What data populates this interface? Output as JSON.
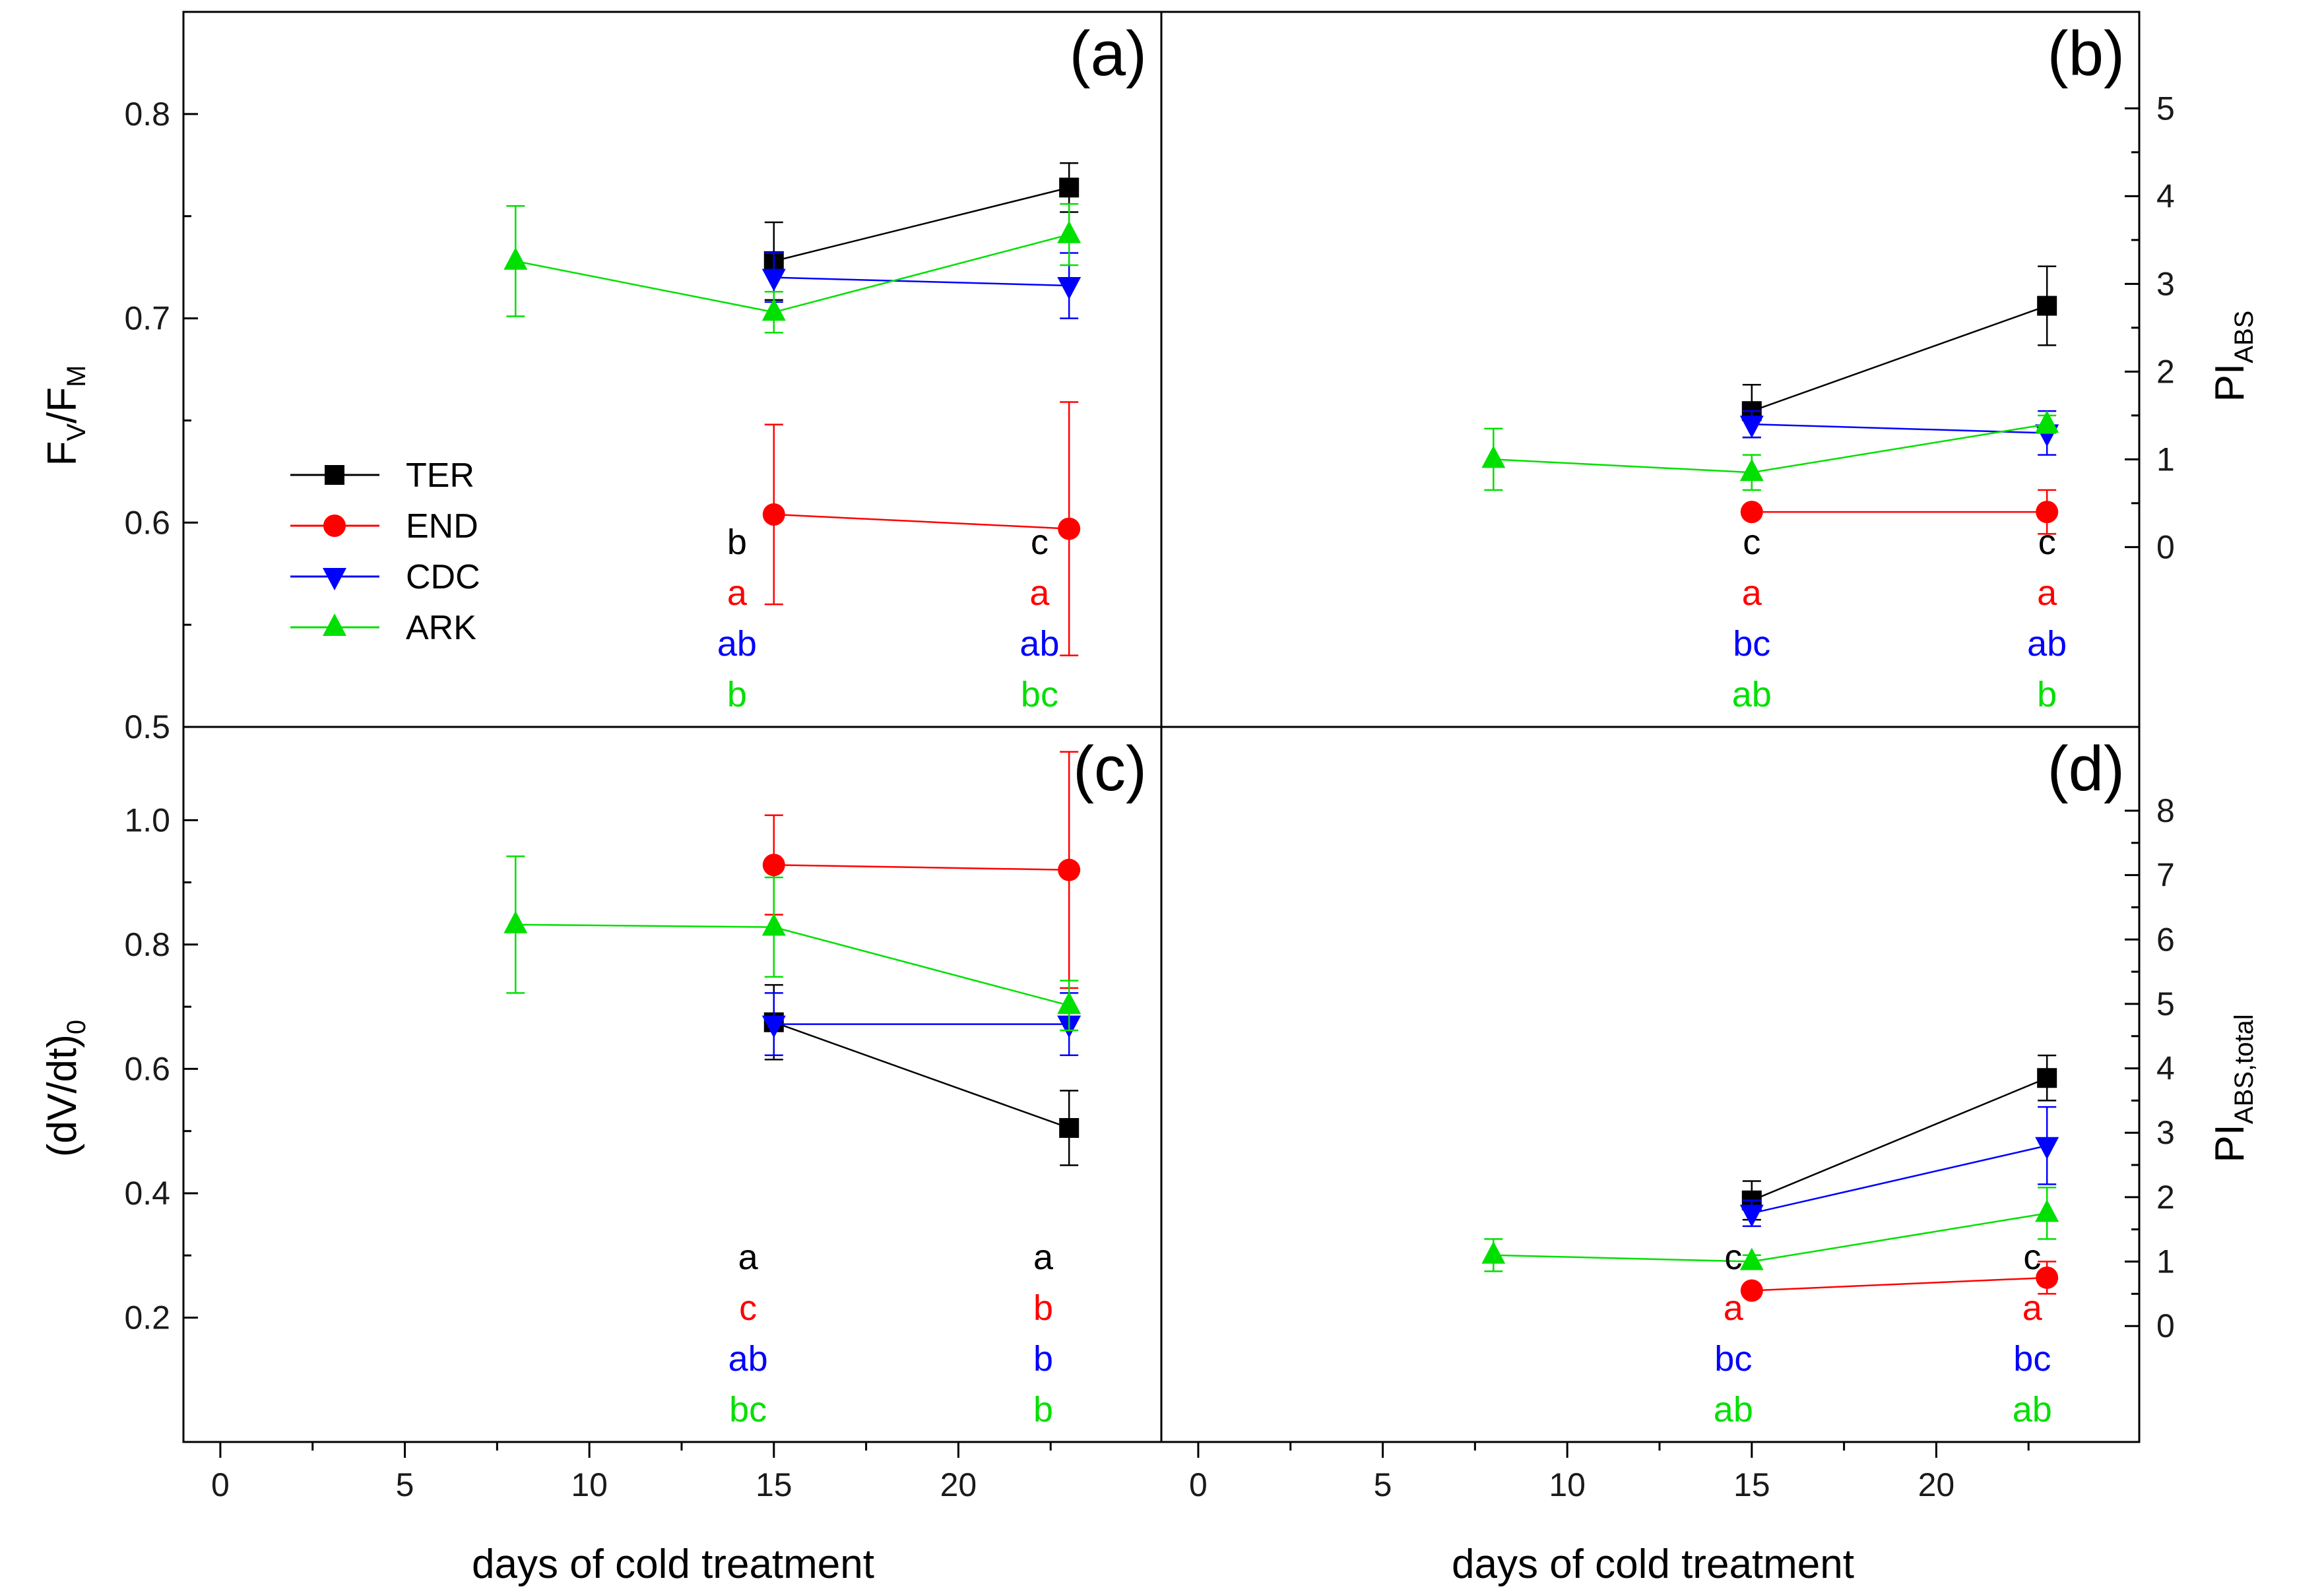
{
  "colors": {
    "TER": "#000000",
    "END": "#ff0000",
    "CDC": "#0000ff",
    "ARK": "#00e000"
  },
  "legend": {
    "entries": [
      {
        "key": "TER",
        "label": "TER"
      },
      {
        "key": "END",
        "label": "END"
      },
      {
        "key": "CDC",
        "label": "CDC"
      },
      {
        "key": "ARK",
        "label": "ARK"
      }
    ]
  },
  "x_axis": {
    "label": "days of cold treatment",
    "ticks": [
      0,
      5,
      10,
      15,
      20
    ]
  },
  "chart_data": [
    {
      "id": "a",
      "panel_label": "(a)",
      "type": "line",
      "ylabel": {
        "main": "F",
        "sub1": "V",
        "mid": "/F",
        "sub2": "M"
      },
      "ylim": [
        0.5,
        0.85
      ],
      "yticks": [
        0.5,
        0.6,
        0.7,
        0.8
      ],
      "ytick_labels": [
        "0.5",
        "0.6",
        "0.7",
        "0.8"
      ],
      "series": [
        {
          "name": "TER",
          "x": [
            15,
            23
          ],
          "y": [
            0.728,
            0.764
          ],
          "err": [
            0.019,
            0.012
          ]
        },
        {
          "name": "END",
          "x": [
            15,
            23
          ],
          "y": [
            0.604,
            0.597
          ],
          "err": [
            0.044,
            0.062
          ]
        },
        {
          "name": "CDC",
          "x": [
            15,
            23
          ],
          "y": [
            0.72,
            0.716
          ],
          "err": [
            0.012,
            0.016
          ]
        },
        {
          "name": "ARK",
          "x": [
            8,
            15,
            23
          ],
          "y": [
            0.728,
            0.703,
            0.741
          ],
          "err": [
            0.027,
            0.01,
            0.015
          ]
        }
      ],
      "letters": [
        {
          "x": 14,
          "labels": [
            "b",
            "a",
            "ab",
            "b"
          ]
        },
        {
          "x": 22.2,
          "labels": [
            "c",
            "a",
            "ab",
            "bc"
          ]
        }
      ]
    },
    {
      "id": "b",
      "panel_label": "(b)",
      "type": "line",
      "ylabel": {
        "main": "PI",
        "sub1": "ABS"
      },
      "ylim": [
        -2.05,
        6.1
      ],
      "yticks": [
        0,
        1,
        2,
        3,
        4,
        5
      ],
      "ytick_labels": [
        "0",
        "1",
        "2",
        "3",
        "4",
        "5"
      ],
      "series": [
        {
          "name": "TER",
          "x": [
            15,
            23
          ],
          "y": [
            1.55,
            2.75
          ],
          "err": [
            0.3,
            0.45
          ]
        },
        {
          "name": "END",
          "x": [
            15,
            23
          ],
          "y": [
            0.4,
            0.4
          ],
          "err": [
            0.05,
            0.25
          ]
        },
        {
          "name": "CDC",
          "x": [
            15,
            23
          ],
          "y": [
            1.4,
            1.3
          ],
          "err": [
            0.15,
            0.25
          ]
        },
        {
          "name": "ARK",
          "x": [
            8,
            15,
            23
          ],
          "y": [
            1.0,
            0.85,
            1.4
          ],
          "err": [
            0.35,
            0.2,
            0.1
          ]
        }
      ],
      "letters": [
        {
          "x": 15,
          "labels": [
            "c",
            "a",
            "bc",
            "ab"
          ]
        },
        {
          "x": 23,
          "labels": [
            "c",
            "a",
            "ab",
            "b"
          ]
        }
      ]
    },
    {
      "id": "c",
      "panel_label": "(c)",
      "type": "line",
      "ylabel": {
        "main": "(dV/dt)",
        "sub1": "0"
      },
      "ylim": [
        0.0,
        1.15
      ],
      "yticks": [
        0.2,
        0.4,
        0.6,
        0.8,
        1.0
      ],
      "ytick_labels": [
        "0.2",
        "0.4",
        "0.6",
        "0.8",
        "1.0"
      ],
      "series": [
        {
          "name": "TER",
          "x": [
            15,
            23
          ],
          "y": [
            0.675,
            0.505
          ],
          "err": [
            0.06,
            0.06
          ]
        },
        {
          "name": "END",
          "x": [
            15,
            23
          ],
          "y": [
            0.928,
            0.92
          ],
          "err": [
            0.08,
            0.19
          ]
        },
        {
          "name": "CDC",
          "x": [
            15,
            23
          ],
          "y": [
            0.672,
            0.672
          ],
          "err": [
            0.05,
            0.05
          ]
        },
        {
          "name": "ARK",
          "x": [
            8,
            15,
            23
          ],
          "y": [
            0.832,
            0.828,
            0.702
          ],
          "err": [
            0.11,
            0.08,
            0.04
          ]
        }
      ],
      "letters": [
        {
          "x": 14.3,
          "labels": [
            "a",
            "c",
            "ab",
            "bc"
          ]
        },
        {
          "x": 22.3,
          "labels": [
            "a",
            "b",
            "b",
            "b"
          ]
        }
      ]
    },
    {
      "id": "d",
      "panel_label": "(d)",
      "type": "line",
      "ylabel": {
        "main": "PI",
        "sub1": "ABS,total"
      },
      "ylim": [
        -1.8,
        9.3
      ],
      "yticks": [
        0,
        1,
        2,
        3,
        4,
        5,
        6,
        7,
        8
      ],
      "ytick_labels": [
        "0",
        "1",
        "2",
        "3",
        "4",
        "5",
        "6",
        "7",
        "8"
      ],
      "series": [
        {
          "name": "TER",
          "x": [
            15,
            23
          ],
          "y": [
            1.95,
            3.85
          ],
          "err": [
            0.3,
            0.35
          ]
        },
        {
          "name": "END",
          "x": [
            15,
            23
          ],
          "y": [
            0.55,
            0.75
          ],
          "err": [
            0.05,
            0.25
          ]
        },
        {
          "name": "CDC",
          "x": [
            15,
            23
          ],
          "y": [
            1.75,
            2.8
          ],
          "err": [
            0.2,
            0.6
          ]
        },
        {
          "name": "ARK",
          "x": [
            8,
            15,
            23
          ],
          "y": [
            1.1,
            1.0,
            1.75
          ],
          "err": [
            0.25,
            0.1,
            0.4
          ]
        }
      ],
      "letters": [
        {
          "x": 14.5,
          "labels": [
            "c",
            "a",
            "bc",
            "ab"
          ]
        },
        {
          "x": 22.6,
          "labels": [
            "c",
            "a",
            "bc",
            "ab"
          ]
        }
      ]
    }
  ]
}
